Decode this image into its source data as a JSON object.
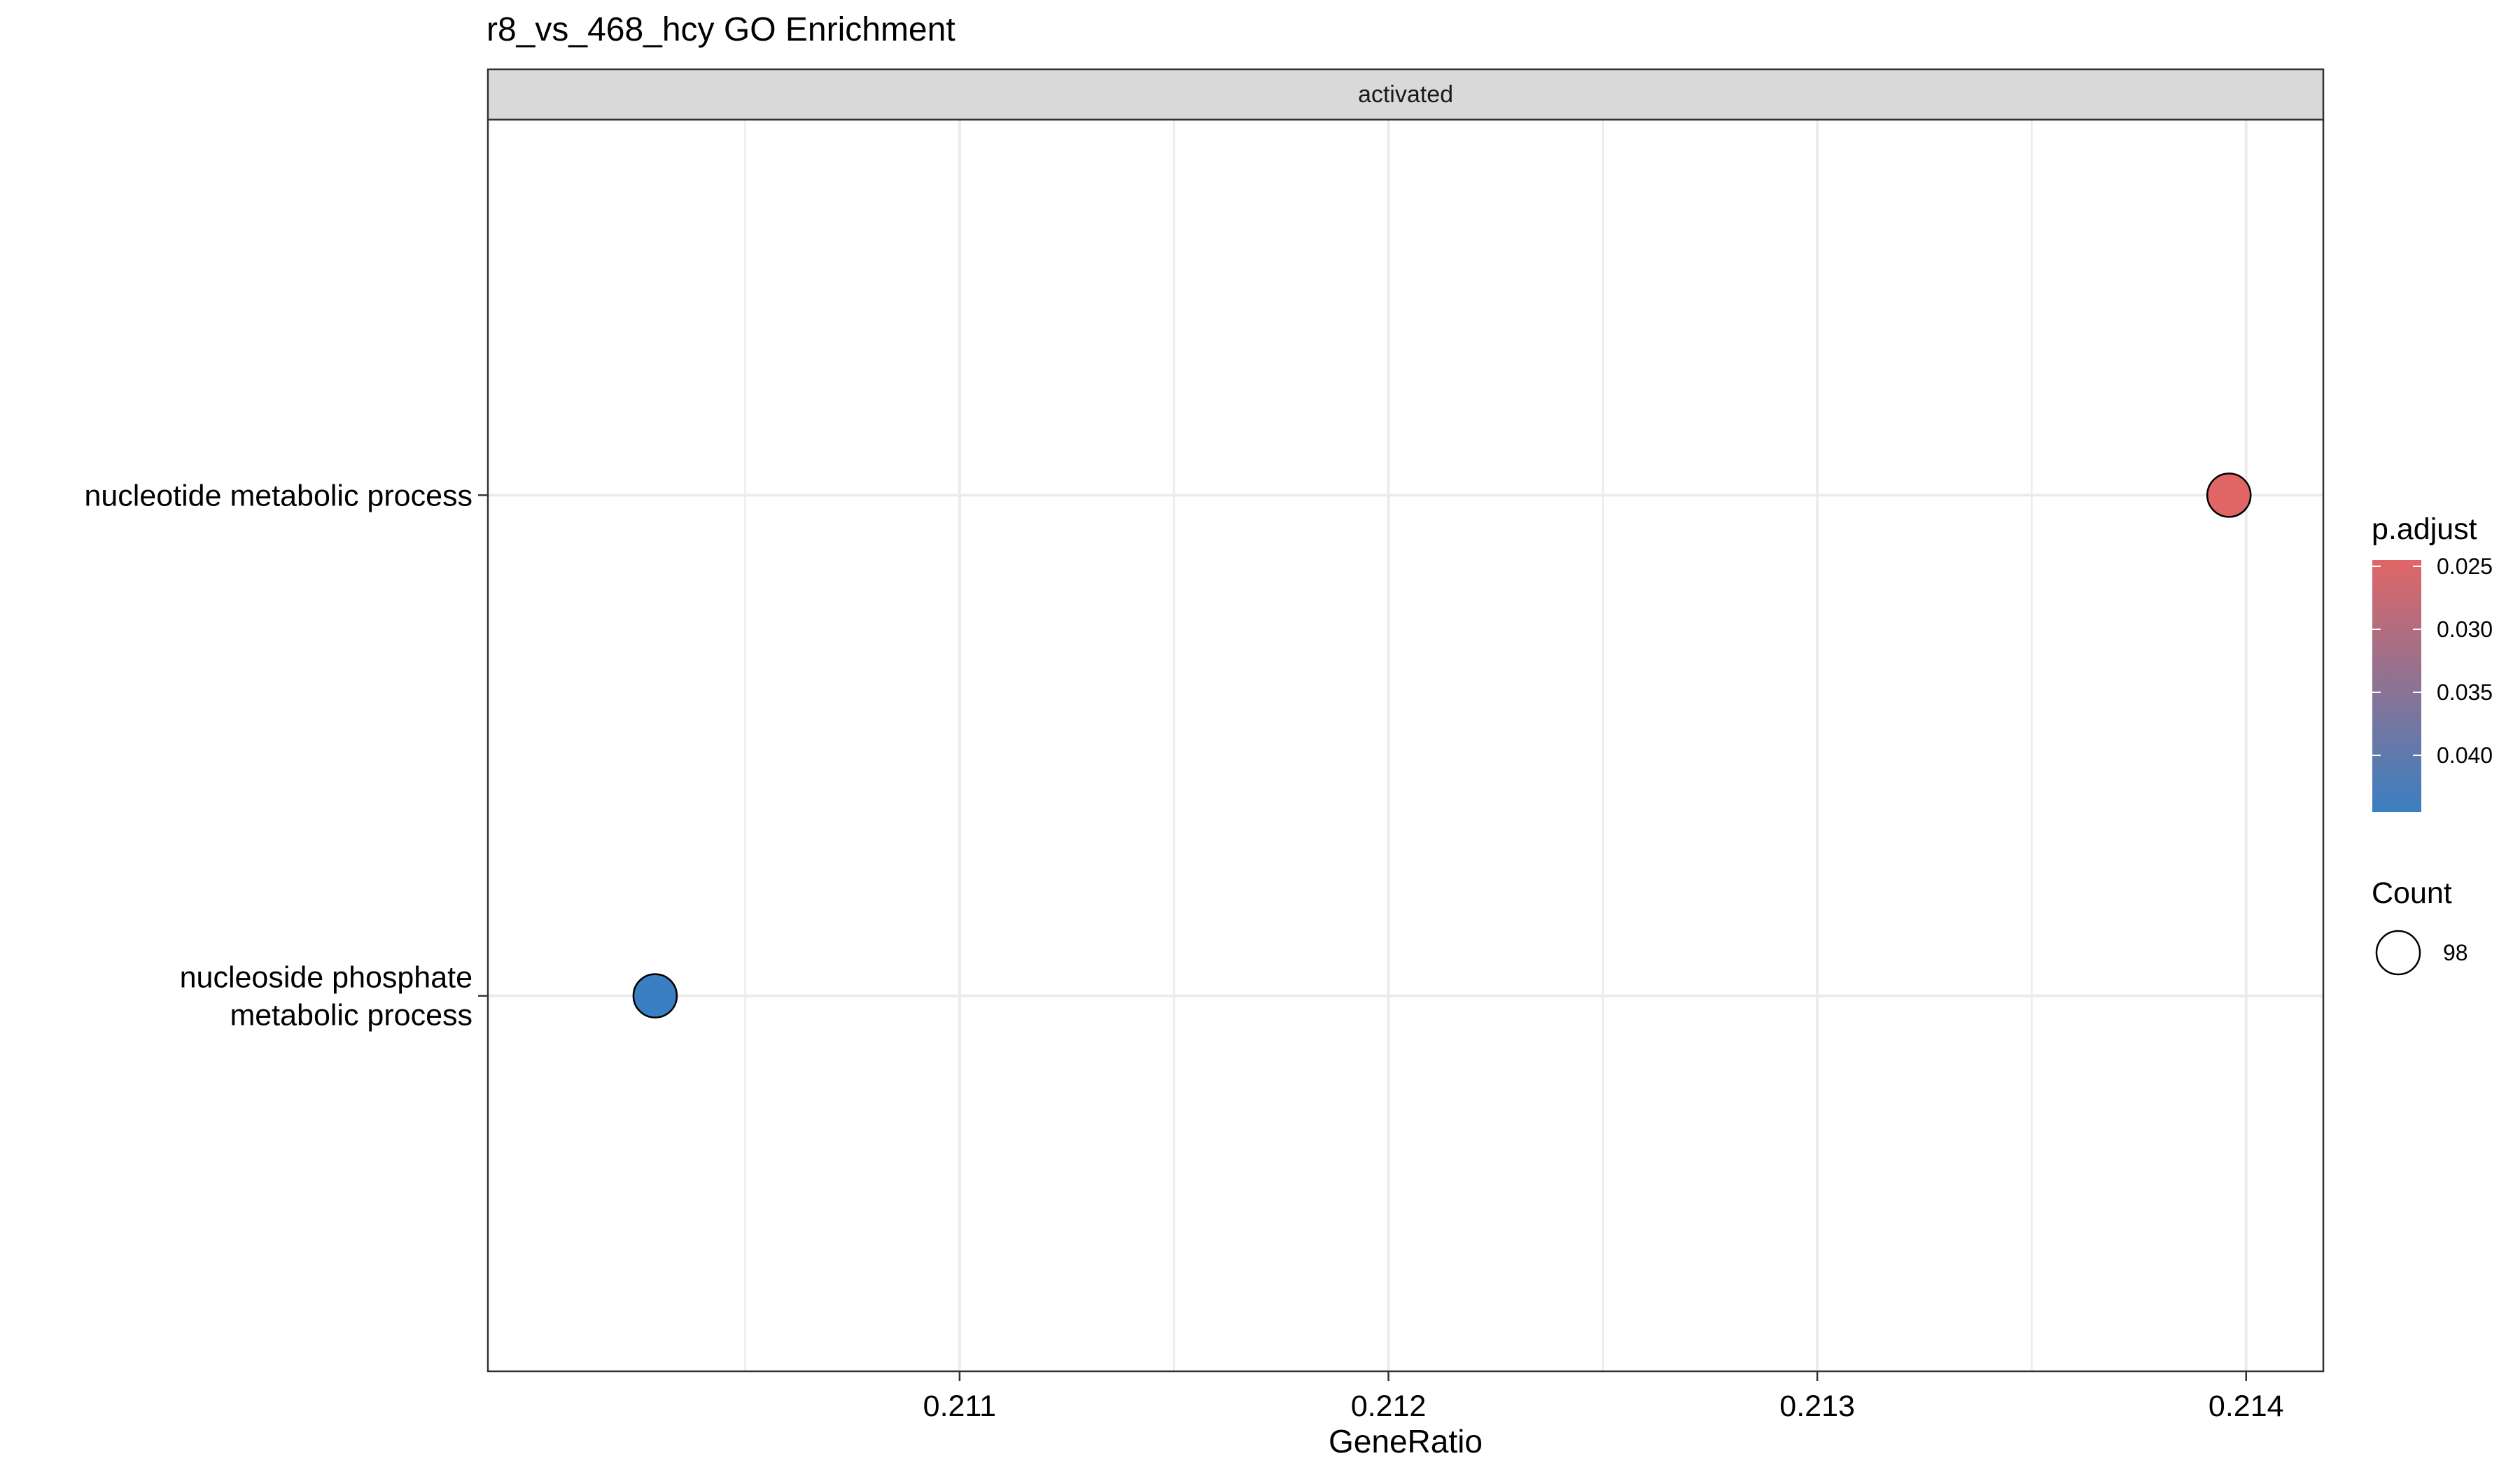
{
  "chart_data": {
    "type": "scatter",
    "title": "r8_vs_468_hcy GO Enrichment",
    "facet": "activated",
    "xlabel": "GeneRatio",
    "ylabel": "",
    "xlim": [
      0.2099,
      0.21418
    ],
    "x_ticks": [
      "0.211",
      "0.212",
      "0.213",
      "0.214"
    ],
    "x_tick_values": [
      0.211,
      0.212,
      0.213,
      0.214
    ],
    "categories": [
      "nucleotide metabolic process",
      "nucleoside phosphate metabolic process"
    ],
    "category_lines": [
      [
        "nucleotide metabolic process"
      ],
      [
        "nucleoside phosphate",
        "metabolic process"
      ]
    ],
    "points": [
      {
        "term": "nucleotide metabolic process",
        "gene_ratio": 0.21396,
        "p_adjust": 0.0255,
        "count": 98,
        "color": "#e06666"
      },
      {
        "term": "nucleoside phosphate metabolic process",
        "gene_ratio": 0.21029,
        "p_adjust": 0.0435,
        "count": 98,
        "color": "#3a7fc1"
      }
    ],
    "grid": true,
    "legend": {
      "placement": "right",
      "color_title": "p.adjust",
      "color_ticks": [
        "0.025",
        "0.030",
        "0.035",
        "0.040"
      ],
      "color_tick_values": [
        0.025,
        0.03,
        0.035,
        0.04
      ],
      "color_range": [
        0.0245,
        0.0445
      ],
      "color_low": "#e06666",
      "color_high": "#3a7fc1",
      "size_title": "Count",
      "size_values": [
        "98"
      ]
    },
    "colors": {
      "panel_border": "#333333",
      "grid": "#ebebeb",
      "strip_fill": "#d9d9d9",
      "point_stroke": "#000000"
    }
  }
}
